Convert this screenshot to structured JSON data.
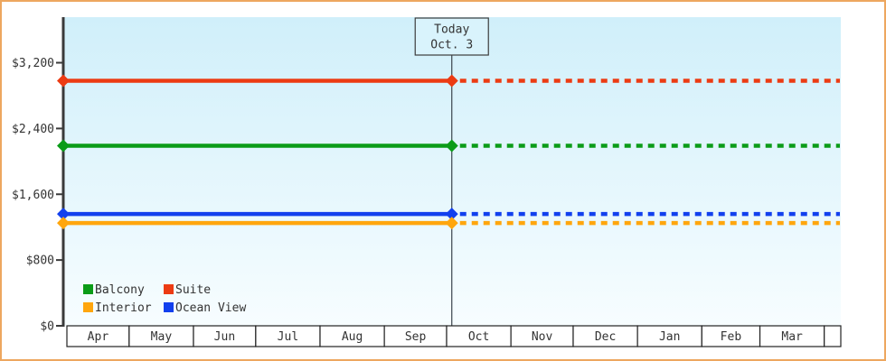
{
  "frame": {
    "border_color": "#eda75f",
    "background": "#ffffff"
  },
  "chart_data": {
    "type": "line",
    "x_axis": {
      "tick_labels": [
        "Apr",
        "May",
        "Jun",
        "Jul",
        "Aug",
        "Sep",
        "Oct",
        "Nov",
        "Dec",
        "Jan",
        "Feb",
        "Mar"
      ],
      "month_days": [
        30,
        31,
        30,
        31,
        31,
        30,
        31,
        30,
        31,
        31,
        28,
        31
      ]
    },
    "y_axis": {
      "tick_values": [
        0,
        800,
        1600,
        2400,
        3200
      ],
      "tick_labels": [
        "$0",
        "$800",
        "$1,600",
        "$2,400",
        "$3,200"
      ],
      "range": [
        0,
        3200
      ],
      "grid": false
    },
    "series": [
      {
        "name": "Suite",
        "color": "#ec3b13",
        "value": 2980
      },
      {
        "name": "Balcony",
        "color": "#0b9c18",
        "value": 2190
      },
      {
        "name": "Ocean View",
        "color": "#1240ee",
        "value": 1360
      },
      {
        "name": "Interior",
        "color": "#ffa60d",
        "value": 1250
      }
    ],
    "line_style": {
      "before_today": "solid",
      "after_today": "dotted"
    },
    "legend": {
      "position": "bottom-left",
      "rows": [
        [
          "Balcony",
          "Suite"
        ],
        [
          "Interior",
          "Ocean View"
        ]
      ]
    },
    "today": {
      "label_line1": "Today",
      "label_line2": "Oct. 3",
      "month": "Oct",
      "day": 3
    },
    "style": {
      "plot_bg_top": "#d0effa",
      "plot_bg_bottom": "#f7fdff",
      "axis_color": "#3a3a3a",
      "text_color": "#333333",
      "band_border_color": "#222222",
      "band_fill": "#ffffff",
      "today_line_color": "#3a444c",
      "today_box_fill": "#d9f3fc",
      "today_box_border": "#3c3c3c"
    }
  }
}
